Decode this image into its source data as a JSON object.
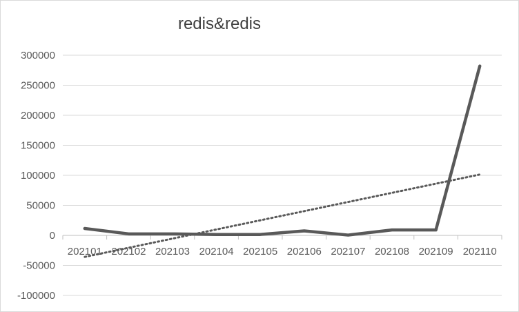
{
  "chart_data": {
    "type": "line",
    "title": "redis&redis",
    "categories": [
      "202101",
      "202102",
      "202103",
      "202104",
      "202105",
      "202106",
      "202107",
      "202108",
      "202109",
      "202110"
    ],
    "series": [
      {
        "values": [
          11500,
          2500,
          2500,
          1500,
          1500,
          7500,
          500,
          9000,
          9000,
          282000
        ],
        "color": "#595959"
      }
    ],
    "trendline": {
      "type": "linear",
      "color": "#595959",
      "style": "dotted"
    },
    "ylim": [
      -100000,
      300000
    ],
    "yticks": [
      300000,
      250000,
      200000,
      150000,
      100000,
      50000,
      0,
      -50000,
      -100000
    ],
    "xlabel": "",
    "ylabel": "",
    "grid": true,
    "legend": "none"
  }
}
